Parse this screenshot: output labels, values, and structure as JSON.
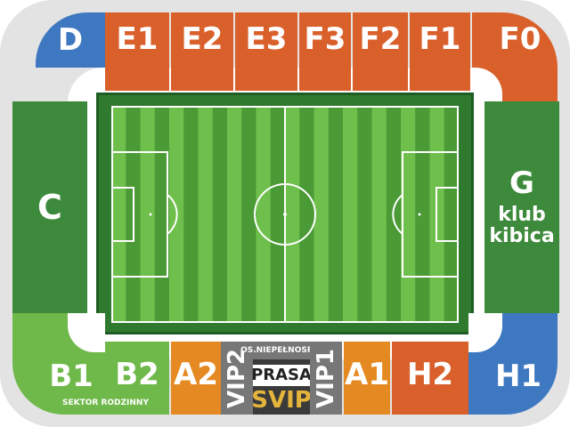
{
  "sectors": {
    "D": "D",
    "E1": "E1",
    "E2": "E2",
    "E3": "E3",
    "F3": "F3",
    "F2": "F2",
    "F1": "F1",
    "F0": "F0",
    "C": "C",
    "G_line1": "G",
    "G_line2": "klub",
    "G_line3": "kibica",
    "B1": "B1",
    "B2": "B2",
    "A2": "A2",
    "VIP2": "VIP2",
    "VIP1": "VIP1",
    "PRASA": "PRASA",
    "SVIP": "SVIP",
    "OS": "OS.NIEPEŁNOSPR.",
    "A1": "A1",
    "H2": "H2",
    "H1": "H1",
    "sektor_rodzinny": "SEKTOR RODZINNY"
  },
  "colors": {
    "orange": "#d9602a",
    "blue": "#3e78c1",
    "green_dark": "#3e8a3c",
    "green_light": "#6fb84a",
    "amber": "#e58a22",
    "grey": "#777777",
    "pitch_stripe_dark": "#4a9a36",
    "pitch_stripe_light": "#6fbf4d",
    "pitch_lines": "#ffffff"
  }
}
